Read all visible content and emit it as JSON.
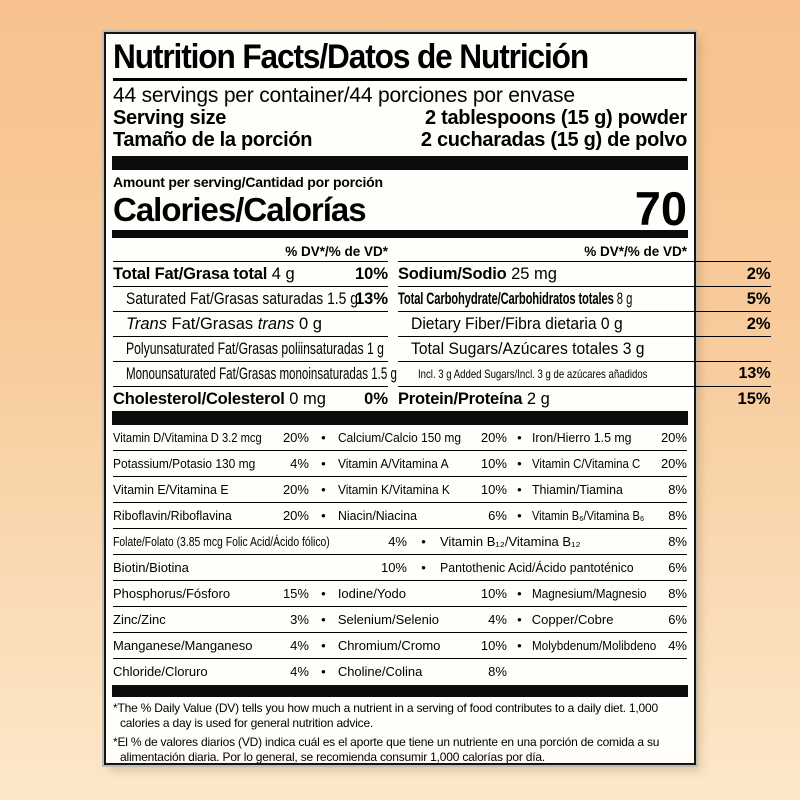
{
  "background": {
    "top": "#f7c28e",
    "bottom": "#fce8ca"
  },
  "label": {
    "title": "Nutrition Facts/Datos de Nutrición",
    "servings": "44 servings per container/44 porciones por envase",
    "serving_size_en_label": "Serving size",
    "serving_size_en_value": "2 tablespoons (15 g) powder",
    "serving_size_es_label": "Tamaño de la porción",
    "serving_size_es_value": "2 cucharadas (15 g) de polvo",
    "amount_per_serving": "Amount per serving/Cantidad por porción",
    "calories_label": "Calories/Calorías",
    "calories_value": "70",
    "dv_header_left": "% DV*/% de VD*",
    "dv_header_right": "% DV*/% de VD*",
    "bullet": "•"
  },
  "facts_left": [
    {
      "name": "Total Fat/Grasa total",
      "amount": " 4 g",
      "pct": "10%"
    },
    {
      "name": "Saturated Fat/Grasas saturadas",
      "amount": " 1.5 g",
      "pct": "13%"
    },
    {
      "name_i1": "Trans",
      "name_mid": " Fat/Grasas ",
      "name_i2": "trans",
      "amount": " 0 g",
      "pct": ""
    },
    {
      "name": "Polyunsaturated Fat/Grasas poliinsaturadas",
      "amount": " 1 g",
      "pct": ""
    },
    {
      "name": "Monounsaturated Fat/Grasas monoinsaturadas",
      "amount": " 1.5 g",
      "pct": ""
    },
    {
      "name": "Cholesterol/Colesterol",
      "amount": " 0 mg",
      "pct": "0%"
    }
  ],
  "facts_right": [
    {
      "name": "Sodium/Sodio",
      "amount": " 25 mg",
      "pct": "2%"
    },
    {
      "name": "Total Carbohydrate/Carbohidratos totales",
      "amount": " 8 g",
      "pct": "5%"
    },
    {
      "name": "Dietary Fiber/Fibra dietaria",
      "amount": " 0 g",
      "pct": "2%"
    },
    {
      "name": "Total Sugars/Azúcares totales",
      "amount": " 3 g",
      "pct": ""
    },
    {
      "name": "Incl. 3 g Added Sugars/Incl. 3 g de azúcares añadidos",
      "amount": "",
      "pct": "13%"
    },
    {
      "name": "Protein/Proteína",
      "amount": " 2 g",
      "pct": "15%"
    }
  ],
  "vitamins": [
    {
      "cells": [
        {
          "label": "Vitamin D/Vitamina D 3.2 mcg",
          "pct": "20%"
        },
        {
          "label": "Calcium/Calcio 150 mg",
          "pct": "20%"
        },
        {
          "label": "Iron/Hierro 1.5 mg",
          "pct": "20%"
        }
      ]
    },
    {
      "cells": [
        {
          "label": "Potassium/Potasio 130 mg",
          "pct": "4%"
        },
        {
          "label": "Vitamin A/Vitamina A",
          "pct": "10%"
        },
        {
          "label": "Vitamin C/Vitamina C",
          "pct": "20%"
        }
      ]
    },
    {
      "cells": [
        {
          "label": "Vitamin E/Vitamina E",
          "pct": "20%"
        },
        {
          "label": "Vitamin K/Vitamina K",
          "pct": "10%"
        },
        {
          "label": "Thiamin/Tiamina",
          "pct": "8%"
        }
      ]
    },
    {
      "cells": [
        {
          "label": "Riboflavin/Riboflavina",
          "pct": "20%"
        },
        {
          "label": "Niacin/Niacina",
          "pct": "6%"
        },
        {
          "label": "Vitamin B₆/Vitamina B₆",
          "pct": "8%"
        }
      ]
    },
    {
      "wide": true,
      "cells": [
        {
          "label": "Folate/Folato (3.85 mcg Folic Acid/Ácido fólico)",
          "pct": "4%"
        },
        {
          "label": "Vitamin B₁₂/Vitamina B₁₂",
          "pct": "8%"
        }
      ]
    },
    {
      "wide": true,
      "cells": [
        {
          "label": "Biotin/Biotina",
          "pct": "10%"
        },
        {
          "label": "Pantothenic Acid/Ácido pantoténico",
          "pct": "6%"
        }
      ]
    },
    {
      "cells": [
        {
          "label": "Phosphorus/Fósforo",
          "pct": "15%"
        },
        {
          "label": "Iodine/Yodo",
          "pct": "10%"
        },
        {
          "label": "Magnesium/Magnesio",
          "pct": "8%"
        }
      ]
    },
    {
      "cells": [
        {
          "label": "Zinc/Zinc",
          "pct": "3%"
        },
        {
          "label": "Selenium/Selenio",
          "pct": "4%"
        },
        {
          "label": "Copper/Cobre",
          "pct": "6%"
        }
      ]
    },
    {
      "cells": [
        {
          "label": "Manganese/Manganeso",
          "pct": "4%"
        },
        {
          "label": "Chromium/Cromo",
          "pct": "10%"
        },
        {
          "label": "Molybdenum/Molibdeno",
          "pct": "4%"
        }
      ]
    },
    {
      "cells": [
        {
          "label": "Chloride/Cloruro",
          "pct": "4%"
        },
        {
          "label": "Choline/Colina",
          "pct": "8%"
        }
      ]
    }
  ],
  "footnotes": {
    "en": "*The % Daily Value (DV) tells you how much a nutrient in a serving of food contributes to a daily diet. 1,000 calories a day is used for general nutrition advice.",
    "es": "*El % de valores diarios (VD) indica cuál es el aporte que tiene un nutriente en una porción de comida a su alimentación diaria. Por lo general, se recomienda consumir 1,000 calorías por día."
  }
}
